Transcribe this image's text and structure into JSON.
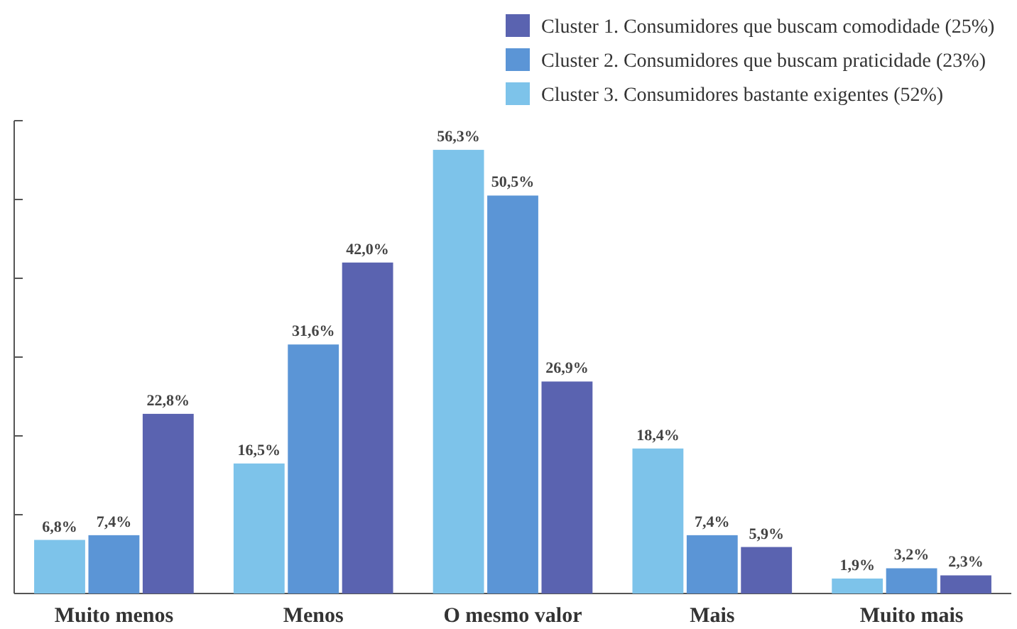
{
  "chart_data": {
    "type": "bar",
    "categories": [
      "Muito menos",
      "Menos",
      "O mesmo valor",
      "Mais",
      "Muito mais"
    ],
    "series": [
      {
        "name": "Cluster 3. Consumidores bastante exigentes (52%)",
        "color": "#7dc3ea",
        "values": [
          6.8,
          16.5,
          56.3,
          18.4,
          1.9
        ],
        "value_labels": [
          "6,8%",
          "16,5%",
          "56,3%",
          "18,4%",
          "1,9%"
        ]
      },
      {
        "name": "Cluster 2. Consumidores que buscam praticidade (23%)",
        "color": "#5b95d6",
        "values": [
          7.4,
          31.6,
          50.5,
          7.4,
          3.2
        ],
        "value_labels": [
          "7,4%",
          "31,6%",
          "50,5%",
          "7,4%",
          "3,2%"
        ]
      },
      {
        "name": "Cluster 1. Consumidores que buscam comodidade (25%)",
        "color": "#5a63b0",
        "values": [
          22.8,
          42.0,
          26.9,
          5.9,
          2.3
        ],
        "value_labels": [
          "22,8%",
          "42,0%",
          "26,9%",
          "5,9%",
          "2,3%"
        ]
      }
    ],
    "ylim": [
      0,
      60
    ],
    "yticks": [
      {
        "value": 0,
        "label": null
      },
      {
        "value": 10,
        "label": null
      },
      {
        "value": 20,
        "label": null
      },
      {
        "value": 30,
        "label": null
      },
      {
        "value": 40,
        "label": null
      },
      {
        "value": 50,
        "label": null
      },
      {
        "value": 60,
        "label": null
      }
    ],
    "tick_labels": "x",
    "legend": "top right",
    "grid": false
  }
}
